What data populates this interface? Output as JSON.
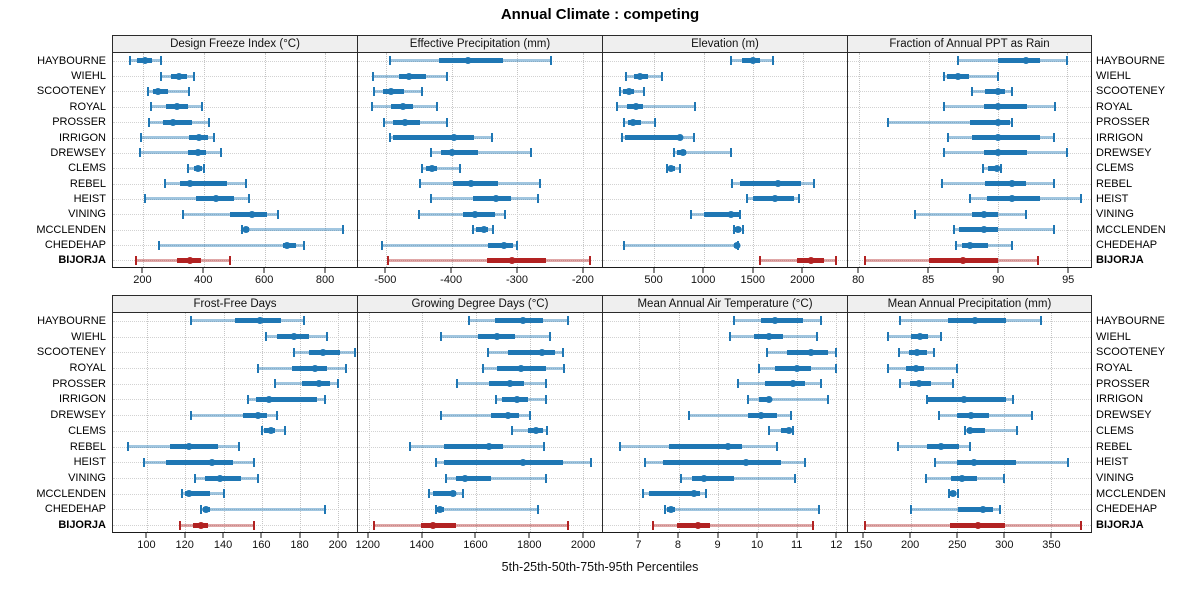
{
  "title": "Annual Climate : competing",
  "caption": "5th-25th-50th-75th-95th Percentiles",
  "sites": [
    "HAYBOURNE",
    "WIEHL",
    "SCOOTENEY",
    "ROYAL",
    "PROSSER",
    "IRRIGON",
    "DREWSEY",
    "CLEMS",
    "REBEL",
    "HEIST",
    "VINING",
    "MCCLENDEN",
    "CHEDEHAP",
    "BIJORJA"
  ],
  "highlight_site": "BIJORJA",
  "colors": {
    "series": "#1f77b4",
    "series_light": "rgba(31,119,180,0.42)",
    "highlight": "#b22222",
    "highlight_light": "rgba(178,34,34,0.40)",
    "strip_bg": "#efefef",
    "grid": "#c4c4c4"
  },
  "chart_data": {
    "type": "percentile-interval-trellis",
    "percentile_levels": [
      5,
      25,
      50,
      75,
      95
    ],
    "layout": {
      "rows": 2,
      "cols": 4
    },
    "legend_position": "none",
    "grid": "dotted",
    "panels": [
      {
        "title": "Design Freeze Index (°C)",
        "xlim": [
          100,
          905
        ],
        "ticks": [
          200,
          400,
          600,
          800
        ],
        "values": [
          [
            155,
            180,
            205,
            230,
            257
          ],
          [
            260,
            292,
            317,
            343,
            366
          ],
          [
            217,
            232,
            248,
            280,
            350
          ],
          [
            224,
            275,
            311,
            346,
            393
          ],
          [
            220,
            264,
            297,
            362,
            417
          ],
          [
            191,
            351,
            384,
            413,
            433
          ],
          [
            188,
            346,
            381,
            406,
            457
          ],
          [
            346,
            366,
            381,
            392,
            400
          ],
          [
            270,
            320,
            355,
            475,
            540
          ],
          [
            204,
            373,
            439,
            499,
            548
          ],
          [
            330,
            485,
            560,
            608,
            645
          ],
          [
            525,
            532,
            540,
            550,
            860
          ],
          [
            253,
            662,
            675,
            705,
            731
          ],
          [
            177,
            310,
            355,
            390,
            485
          ]
        ]
      },
      {
        "title": "Effective Precipitation (mm)",
        "xlim": [
          -543,
          -171
        ],
        "ticks": [
          -500,
          -400,
          -300,
          -200
        ],
        "values": [
          [
            -494,
            -420,
            -375,
            -322,
            -248
          ],
          [
            -520,
            -480,
            -465,
            -440,
            -407
          ],
          [
            -518,
            -505,
            -492,
            -473,
            -445
          ],
          [
            -521,
            -493,
            -474,
            -459,
            -423
          ],
          [
            -504,
            -489,
            -471,
            -449,
            -407
          ],
          [
            -494,
            -490,
            -397,
            -366,
            -338
          ],
          [
            -431,
            -416,
            -399,
            -360,
            -280
          ],
          [
            -445,
            -440,
            -430,
            -422,
            -388
          ],
          [
            -449,
            -398,
            -370,
            -330,
            -266
          ],
          [
            -432,
            -368,
            -332,
            -309,
            -269
          ],
          [
            -450,
            -383,
            -364,
            -334,
            -319
          ],
          [
            -368,
            -363,
            -351,
            -345,
            -337
          ],
          [
            -507,
            -345,
            -321,
            -307,
            -301
          ],
          [
            -498,
            -347,
            -308,
            -256,
            -190
          ]
        ]
      },
      {
        "title": "Elevation (m)",
        "xlim": [
          -20,
          2450
        ],
        "ticks": [
          500,
          1000,
          1500,
          2000
        ],
        "values": [
          [
            1275,
            1385,
            1500,
            1565,
            1705
          ],
          [
            210,
            295,
            355,
            440,
            580
          ],
          [
            155,
            185,
            240,
            295,
            390
          ],
          [
            125,
            220,
            313,
            380,
            915
          ],
          [
            195,
            230,
            285,
            365,
            505
          ],
          [
            175,
            205,
            760,
            770,
            900
          ],
          [
            695,
            725,
            785,
            825,
            1275
          ],
          [
            630,
            645,
            670,
            710,
            755
          ],
          [
            1290,
            1365,
            1750,
            1980,
            2115
          ],
          [
            1440,
            1500,
            1725,
            1910,
            1960
          ],
          [
            870,
            1000,
            1280,
            1355,
            1370
          ],
          [
            1305,
            1315,
            1350,
            1380,
            1400
          ],
          [
            195,
            1310,
            1335,
            1345,
            1350
          ],
          [
            1570,
            1945,
            2090,
            2215,
            2335
          ]
        ]
      },
      {
        "title": "Fraction of Annual PPT as Rain",
        "xlim": [
          79.2,
          96.7
        ],
        "ticks": [
          80,
          85,
          90,
          95
        ],
        "values": [
          [
            87.1,
            90.0,
            92.0,
            93.0,
            95.0
          ],
          [
            86.1,
            86.3,
            87.1,
            87.9,
            90.0
          ],
          [
            88.1,
            89.1,
            90.0,
            90.5,
            91.0
          ],
          [
            86.1,
            89.0,
            90.0,
            92.1,
            94.1
          ],
          [
            82.1,
            88.0,
            90.0,
            90.9,
            91.0
          ],
          [
            86.4,
            88.1,
            90.0,
            93.0,
            94.0
          ],
          [
            86.1,
            89.0,
            90.0,
            92.1,
            95.0
          ],
          [
            88.9,
            89.3,
            89.9,
            90.0,
            90.2
          ],
          [
            86.0,
            89.1,
            91.0,
            92.0,
            94.0
          ],
          [
            88.0,
            89.2,
            91.0,
            93.0,
            96.0
          ],
          [
            84.0,
            88.1,
            89.0,
            90.0,
            92.0
          ],
          [
            86.8,
            87.2,
            89.0,
            90.0,
            94.0
          ],
          [
            87.0,
            87.4,
            88.0,
            89.3,
            91.0
          ],
          [
            80.4,
            85.0,
            87.5,
            90.0,
            92.9
          ]
        ]
      },
      {
        "title": "Frost-Free Days",
        "xlim": [
          82,
          210
        ],
        "ticks": [
          100,
          120,
          140,
          160,
          180,
          200
        ],
        "values": [
          [
            123,
            146,
            159,
            170,
            182
          ],
          [
            162,
            168,
            177,
            185,
            194
          ],
          [
            177,
            185,
            192,
            201,
            209
          ],
          [
            158,
            176,
            188,
            194,
            204
          ],
          [
            167,
            181,
            190,
            196,
            200
          ],
          [
            153,
            157,
            164,
            189,
            193
          ],
          [
            123,
            150,
            158,
            163,
            168
          ],
          [
            160,
            161,
            165,
            167,
            172
          ],
          [
            90,
            112,
            122,
            137,
            148
          ],
          [
            98,
            110,
            134,
            145,
            156
          ],
          [
            125,
            130,
            138,
            149,
            158
          ],
          [
            118,
            120,
            122,
            133,
            140
          ],
          [
            128,
            129,
            131,
            133,
            193
          ],
          [
            117,
            124,
            128,
            132,
            156
          ]
        ]
      },
      {
        "title": "Growing Degree Days (°C)",
        "xlim": [
          1160,
          2070
        ],
        "ticks": [
          1200,
          1400,
          1600,
          1800,
          2000
        ],
        "values": [
          [
            1575,
            1670,
            1775,
            1850,
            1945
          ],
          [
            1470,
            1608,
            1680,
            1746,
            1875
          ],
          [
            1645,
            1718,
            1845,
            1893,
            1925
          ],
          [
            1625,
            1680,
            1767,
            1860,
            1930
          ],
          [
            1530,
            1647,
            1728,
            1780,
            1860
          ],
          [
            1676,
            1698,
            1754,
            1795,
            1860
          ],
          [
            1470,
            1655,
            1720,
            1760,
            1800
          ],
          [
            1735,
            1795,
            1825,
            1850,
            1865
          ],
          [
            1355,
            1480,
            1650,
            1700,
            1855
          ],
          [
            1450,
            1480,
            1775,
            1925,
            2030
          ],
          [
            1490,
            1525,
            1560,
            1655,
            1860
          ],
          [
            1425,
            1440,
            1515,
            1525,
            1550
          ],
          [
            1450,
            1455,
            1465,
            1480,
            1830
          ],
          [
            1220,
            1395,
            1440,
            1525,
            1945
          ]
        ]
      },
      {
        "title": "Mean Annual Air Temperature (°C)",
        "xlim": [
          6.08,
          12.27
        ],
        "ticks": [
          7,
          8,
          9,
          10,
          11,
          12
        ],
        "values": [
          [
            9.4,
            10.1,
            10.45,
            11.15,
            11.6
          ],
          [
            9.3,
            9.9,
            10.3,
            10.65,
            11.5
          ],
          [
            10.25,
            10.75,
            11.35,
            11.8,
            12.0
          ],
          [
            10.05,
            10.45,
            11.0,
            11.35,
            12.0
          ],
          [
            9.5,
            10.2,
            10.9,
            11.2,
            11.6
          ],
          [
            9.75,
            10.05,
            10.3,
            10.35,
            11.8
          ],
          [
            8.25,
            9.75,
            10.1,
            10.5,
            10.85
          ],
          [
            10.3,
            10.6,
            10.8,
            10.85,
            10.9
          ],
          [
            6.5,
            7.75,
            9.25,
            9.6,
            10.5
          ],
          [
            7.15,
            7.6,
            9.7,
            10.6,
            11.2
          ],
          [
            8.05,
            8.35,
            8.65,
            9.4,
            10.95
          ],
          [
            7.1,
            7.25,
            8.4,
            8.55,
            8.7
          ],
          [
            7.65,
            7.7,
            7.8,
            7.9,
            11.55
          ],
          [
            7.35,
            7.95,
            8.5,
            8.8,
            11.4
          ]
        ]
      },
      {
        "title": "Mean Annual Precipitation (mm)",
        "xlim": [
          133,
          393
        ],
        "ticks": [
          150,
          200,
          250,
          300,
          350
        ],
        "values": [
          [
            189,
            240,
            269,
            302,
            340
          ],
          [
            176,
            200,
            210,
            219,
            232
          ],
          [
            188,
            198,
            207,
            217,
            225
          ],
          [
            176,
            195,
            206,
            214,
            250
          ],
          [
            189,
            199,
            209,
            222,
            245
          ],
          [
            217,
            219,
            257,
            302,
            310
          ],
          [
            230,
            250,
            265,
            284,
            330
          ],
          [
            258,
            260,
            264,
            280,
            314
          ],
          [
            186,
            217,
            232,
            252,
            264
          ],
          [
            226,
            250,
            268,
            313,
            368
          ],
          [
            216,
            243,
            255,
            271,
            300
          ],
          [
            241,
            242,
            245,
            249,
            251
          ],
          [
            200,
            251,
            277,
            288,
            296
          ],
          [
            151,
            242,
            272,
            301,
            382
          ]
        ]
      }
    ]
  }
}
